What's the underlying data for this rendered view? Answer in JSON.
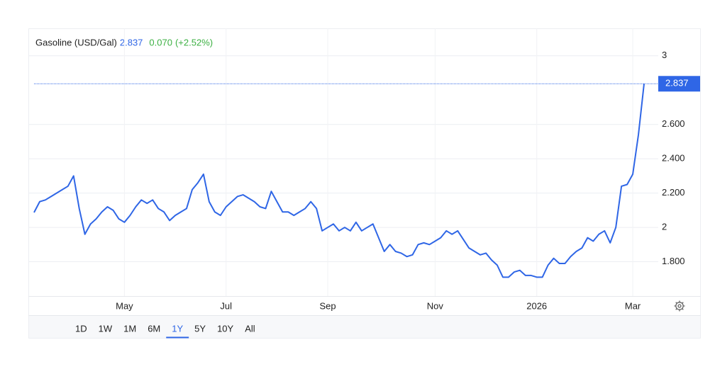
{
  "header": {
    "title": "Gasoline (USD/Gal)",
    "price": "2.837",
    "change": "0.070",
    "change_pct": "(+2.52%)"
  },
  "ranges": [
    "1D",
    "1W",
    "1M",
    "6M",
    "1Y",
    "5Y",
    "10Y",
    "All"
  ],
  "selected_range_index": 4,
  "chart_data": {
    "type": "line",
    "categories": [
      null,
      null,
      null,
      null,
      null,
      null,
      null,
      null,
      null,
      null,
      null,
      null,
      null,
      null,
      null,
      null,
      "May",
      null,
      null,
      null,
      null,
      null,
      null,
      null,
      null,
      null,
      null,
      null,
      null,
      null,
      null,
      null,
      null,
      null,
      "Jul",
      null,
      null,
      null,
      null,
      null,
      null,
      null,
      null,
      null,
      null,
      null,
      null,
      null,
      null,
      null,
      null,
      null,
      "Sep",
      null,
      null,
      null,
      null,
      null,
      null,
      null,
      null,
      null,
      null,
      null,
      null,
      null,
      null,
      null,
      null,
      null,
      null,
      "Nov",
      null,
      null,
      null,
      null,
      null,
      null,
      null,
      null,
      null,
      null,
      null,
      null,
      null,
      null,
      null,
      null,
      null,
      "2026",
      null,
      null,
      null,
      null,
      null,
      null,
      null,
      null,
      null,
      null,
      null,
      null,
      null,
      null,
      null,
      null,
      "Mar",
      null,
      null
    ],
    "series": [
      {
        "name": "Gasoline (USD/Gal)",
        "color": "#2f66e6",
        "values": [
          2.087,
          2.15,
          2.16,
          2.18,
          2.2,
          2.22,
          2.24,
          2.3,
          2.11,
          1.96,
          2.02,
          2.05,
          2.09,
          2.12,
          2.1,
          2.05,
          2.03,
          2.07,
          2.12,
          2.16,
          2.14,
          2.16,
          2.11,
          2.09,
          2.04,
          2.07,
          2.09,
          2.11,
          2.22,
          2.26,
          2.31,
          2.15,
          2.09,
          2.07,
          2.12,
          2.15,
          2.18,
          2.19,
          2.17,
          2.15,
          2.12,
          2.11,
          2.21,
          2.15,
          2.09,
          2.09,
          2.07,
          2.09,
          2.11,
          2.15,
          2.11,
          1.98,
          2.0,
          2.02,
          1.98,
          2.0,
          1.98,
          2.03,
          1.98,
          2.0,
          2.02,
          1.94,
          1.86,
          1.9,
          1.86,
          1.85,
          1.83,
          1.84,
          1.9,
          1.91,
          1.9,
          1.92,
          1.94,
          1.98,
          1.96,
          1.98,
          1.93,
          1.88,
          1.86,
          1.84,
          1.85,
          1.81,
          1.78,
          1.71,
          1.71,
          1.74,
          1.75,
          1.72,
          1.72,
          1.71,
          1.71,
          1.78,
          1.82,
          1.79,
          1.79,
          1.83,
          1.86,
          1.88,
          1.94,
          1.92,
          1.96,
          1.98,
          1.91,
          2.0,
          2.24,
          2.25,
          2.31,
          2.54,
          2.837
        ]
      }
    ],
    "ylim": [
      1.6,
      3.16
    ],
    "yticks": [
      3,
      {
        "value": 2.6,
        "label": "2.600"
      },
      {
        "value": 2.4,
        "label": "2.400"
      },
      {
        "value": 2.2,
        "label": "2.200"
      },
      2,
      {
        "value": 1.8,
        "label": "1.800"
      }
    ],
    "grid": true
  }
}
